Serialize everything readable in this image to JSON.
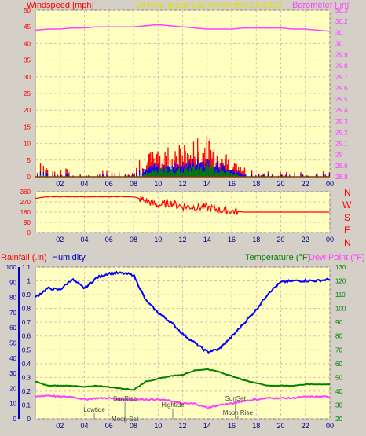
{
  "colors": {
    "background": "#d4d0c8",
    "plot_bg": "#ffffc0",
    "grid": "#e0b8b8",
    "wind": "#ff0000",
    "wind_avg": "#0000ff",
    "wind_min": "#008000",
    "barometer": "#ff40ff",
    "direction": "#ff0000",
    "humidity": "#0000ff",
    "temperature": "#008000",
    "dewpoint": "#ff40ff",
    "rain": "#0000ff",
    "title": "#e0e000",
    "marker": "#808080"
  },
  "header": {
    "windspeed_label": "Windspeed [mph]",
    "title": "24 hour graph day   November 25 2020",
    "barometer_label": "Barometer [.in]"
  },
  "mid": {
    "compass": [
      "N",
      "W",
      "S",
      "E",
      "N"
    ]
  },
  "bottom": {
    "rainfall_label": "Rainfall (.in)",
    "humidity_label": "Humidity",
    "temperature_label": "Temperature (°F)",
    "dewpoint_label": "Dew Point (°F)"
  },
  "chart_data": [
    {
      "type": "line",
      "id": "wind",
      "x_ticks": [
        "02",
        "04",
        "06",
        "08",
        "10",
        "12",
        "14",
        "16",
        "18",
        "20",
        "22",
        "00"
      ],
      "left_axis": {
        "label": "Windspeed [mph]",
        "ylim": [
          0,
          50
        ],
        "ticks": [
          0,
          5,
          10,
          15,
          20,
          25,
          30,
          35,
          40,
          45,
          50
        ]
      },
      "right_axis": {
        "label": "Barometer [.in]",
        "ylim": [
          28.8,
          30.3
        ],
        "ticks": [
          "28.8",
          "28.9",
          "29",
          "29.1",
          "29.2",
          "29.3",
          "29.4",
          "29.5",
          "29.6",
          "29.7",
          "29.8",
          "29.9",
          "30",
          "30.1",
          "30.2",
          "30.3"
        ]
      },
      "x_hours": [
        0,
        1,
        2,
        3,
        4,
        5,
        6,
        7,
        8,
        9,
        10,
        11,
        12,
        13,
        14,
        15,
        16,
        17,
        18,
        19,
        20,
        21,
        22,
        23,
        24
      ],
      "series": [
        {
          "name": "Gust",
          "values": [
            3,
            2,
            2,
            1,
            1,
            1,
            1,
            1,
            1,
            5,
            6,
            7,
            7,
            8,
            9,
            7,
            4,
            2,
            1,
            1,
            1,
            1,
            1,
            1,
            1
          ]
        },
        {
          "name": "Average",
          "values": [
            1,
            1,
            0.5,
            0.5,
            0.5,
            0.5,
            0.5,
            0.5,
            0.5,
            2,
            3,
            3,
            3,
            4,
            4,
            3,
            2,
            0.5,
            0.5,
            0.5,
            0.5,
            0.5,
            0.5,
            0.5,
            0.5
          ]
        },
        {
          "name": "Minimum",
          "values": [
            0.5,
            0.5,
            0,
            0,
            0,
            0,
            0,
            0,
            0,
            1,
            2,
            2,
            2,
            2.5,
            3,
            2,
            1,
            0,
            0,
            0,
            0,
            0,
            0,
            0,
            0
          ]
        },
        {
          "name": "Barometer",
          "values": [
            30.12,
            30.13,
            30.13,
            30.14,
            30.14,
            30.15,
            30.15,
            30.15,
            30.15,
            30.16,
            30.17,
            30.16,
            30.15,
            30.14,
            30.13,
            30.13,
            30.13,
            30.14,
            30.14,
            30.14,
            30.14,
            30.13,
            30.13,
            30.12,
            30.11
          ]
        }
      ]
    },
    {
      "type": "line",
      "id": "direction",
      "x_ticks": [
        "02",
        "04",
        "06",
        "08",
        "10",
        "12",
        "14",
        "16",
        "18",
        "20",
        "22",
        "00"
      ],
      "ylim": [
        0,
        360
      ],
      "ticks": [
        0,
        90,
        180,
        270,
        360
      ],
      "x_hours": [
        0,
        1,
        2,
        3,
        4,
        5,
        6,
        7,
        8,
        9,
        10,
        11,
        12,
        13,
        14,
        15,
        16,
        17,
        18,
        19,
        20,
        21,
        22,
        23,
        24
      ],
      "series": [
        {
          "name": "Direction",
          "values": [
            300,
            315,
            315,
            315,
            315,
            315,
            315,
            315,
            315,
            280,
            240,
            260,
            230,
            225,
            220,
            200,
            190,
            180,
            180,
            180,
            180,
            180,
            180,
            180,
            180
          ]
        }
      ]
    },
    {
      "type": "line",
      "id": "climate",
      "x_ticks": [
        "02",
        "04",
        "06",
        "08",
        "10",
        "12",
        "14",
        "16",
        "18",
        "20",
        "22",
        "00"
      ],
      "rain_axis": {
        "label": "Rainfall (.in)",
        "ylim": [
          0,
          1.1
        ],
        "ticks": [
          "0",
          "0.1",
          "0.2",
          "0.3",
          "0.4",
          "0.5",
          "0.6",
          "0.7",
          "0.8",
          "0.9",
          "1",
          "1.1"
        ]
      },
      "humidity_axis": {
        "label": "Humidity",
        "ylim": [
          0,
          100
        ],
        "ticks": [
          0,
          10,
          20,
          30,
          40,
          50,
          60,
          70,
          80,
          90,
          100
        ]
      },
      "temp_axis": {
        "label": "Temperature (°F)",
        "ylim": [
          20,
          130
        ],
        "ticks": [
          20,
          30,
          40,
          50,
          60,
          70,
          80,
          90,
          100,
          110,
          120,
          130
        ]
      },
      "x_hours": [
        0,
        1,
        2,
        3,
        4,
        5,
        6,
        7,
        8,
        9,
        10,
        11,
        12,
        13,
        14,
        15,
        16,
        17,
        18,
        19,
        20,
        21,
        22,
        23,
        24
      ],
      "series": [
        {
          "name": "Humidity",
          "values": [
            80,
            86,
            85,
            92,
            86,
            93,
            96,
            96,
            95,
            78,
            70,
            64,
            56,
            50,
            44,
            46,
            54,
            63,
            72,
            83,
            90,
            91,
            91,
            91,
            92
          ]
        },
        {
          "name": "Temperature",
          "values": [
            47,
            44,
            44,
            44,
            43,
            44,
            43,
            42,
            41,
            47,
            49,
            51,
            52,
            55,
            56,
            54,
            51,
            48,
            46,
            44,
            44,
            44,
            45,
            45,
            45
          ]
        },
        {
          "name": "Dew Point",
          "values": [
            36,
            37,
            36,
            36,
            34,
            35,
            35,
            34,
            34,
            34,
            34,
            33,
            31,
            31,
            28,
            30,
            31,
            33,
            34,
            35,
            35,
            35,
            36,
            36,
            36
          ]
        }
      ],
      "annotations": [
        {
          "text": "Lowtide",
          "hour": 4.8
        },
        {
          "text": "SunRise",
          "hour": 7.3
        },
        {
          "text": "Moon Set",
          "hour": 7.3
        },
        {
          "text": "Hightide",
          "hour": 11.2
        },
        {
          "text": "SunSet",
          "hour": 16.3
        },
        {
          "text": "Moon Rise",
          "hour": 16.5
        }
      ]
    }
  ]
}
